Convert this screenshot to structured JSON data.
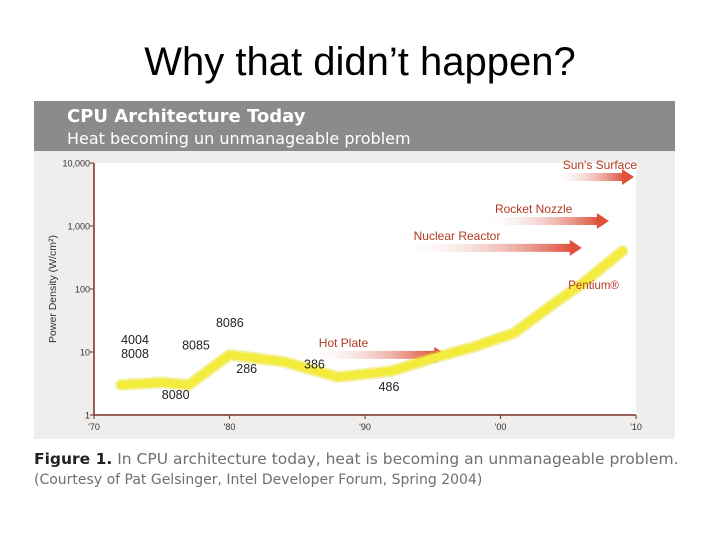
{
  "slide": {
    "title": "Why that didn’t happen?"
  },
  "figure": {
    "header_title": "CPU Architecture Today",
    "header_subtitle": "Heat becoming un unmanageable problem",
    "caption_label": "Figure 1.",
    "caption_text": "In CPU architecture today, heat is becoming an unmanageable problem.",
    "credit": "(Courtesy of Pat Gelsinger, Intel Developer Forum, Spring 2004)"
  },
  "colors": {
    "curve": "#f3ec3c",
    "arrow": "#e0503a",
    "arrow_text": "#b13a22",
    "axis": "#7a2e23"
  },
  "chart_data": {
    "type": "line",
    "ylabel": "Power Density (W/cm²)",
    "yscale": "log",
    "ylim": [
      1,
      10000
    ],
    "xlim": [
      1970,
      2010
    ],
    "yticks": [
      {
        "v": 1,
        "label": "1"
      },
      {
        "v": 10,
        "label": "10"
      },
      {
        "v": 100,
        "label": "100"
      },
      {
        "v": 1000,
        "label": "1,000"
      },
      {
        "v": 10000,
        "label": "10,000"
      }
    ],
    "xticks": [
      {
        "v": 1970,
        "label": "'70"
      },
      {
        "v": 1980,
        "label": "'80"
      },
      {
        "v": 1990,
        "label": "'90"
      },
      {
        "v": 2000,
        "label": "'00"
      },
      {
        "v": 2010,
        "label": "'10"
      }
    ],
    "series": [
      {
        "x": [
          1972,
          1975,
          1977,
          1980,
          1984,
          1988,
          1992,
          1995,
          1998,
          2001,
          2004,
          2006,
          2009
        ],
        "y": [
          3,
          3.3,
          3,
          9,
          7,
          4,
          5,
          8,
          12,
          20,
          60,
          120,
          400
        ]
      }
    ],
    "point_labels": [
      {
        "text": "4004",
        "x": 1972,
        "y": 13.5
      },
      {
        "text": "8008",
        "x": 1972,
        "y": 8
      },
      {
        "text": "8080",
        "x": 1975,
        "y": 1.8
      },
      {
        "text": "8086",
        "x": 1979,
        "y": 25
      },
      {
        "text": "8085",
        "x": 1976.5,
        "y": 11
      },
      {
        "text": "286",
        "x": 1980.5,
        "y": 4.6
      },
      {
        "text": "386",
        "x": 1985.5,
        "y": 5.5
      },
      {
        "text": "486",
        "x": 1991,
        "y": 2.4
      },
      {
        "text": "Pentium®",
        "x": 2005,
        "y": 100
      }
    ],
    "references": [
      {
        "label": "Hot Plate",
        "x_start": 1986,
        "x_end": 1996,
        "y": 9
      },
      {
        "label": "Nuclear Reactor",
        "x_start": 1993,
        "x_end": 2006,
        "y": 450
      },
      {
        "label": "Rocket Nozzle",
        "x_start": 1999,
        "x_end": 2008,
        "y": 1200
      },
      {
        "label": "Sun's Surface",
        "x_start": 2004,
        "x_end": 2012,
        "y": 6000
      }
    ]
  }
}
